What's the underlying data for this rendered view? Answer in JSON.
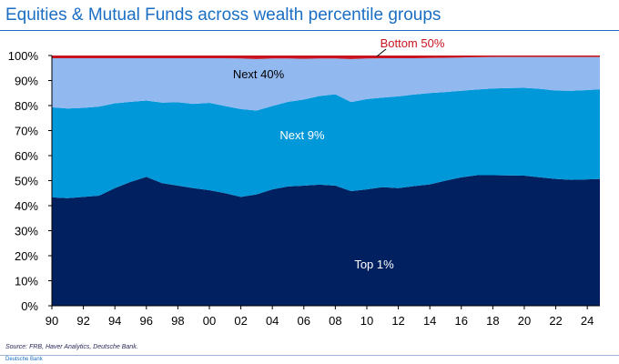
{
  "header": {
    "title": "Equities & Mutual Funds across wealth percentile groups"
  },
  "footer": {
    "source": "Source: FRB, Haver Analytics, Deutsche Bank.",
    "brand": "Deutsche Bank"
  },
  "colors": {
    "top1": "#012060",
    "next9": "#0098d8",
    "next40": "#92b8f0",
    "bottom50": "#c8141e",
    "title": "#1a6fc4"
  },
  "chart_data": {
    "type": "area",
    "stacked": true,
    "percent": true,
    "title": "Equities & Mutual Funds across wealth percentile groups",
    "xlim": [
      1990,
      2024.8
    ],
    "ylim": [
      0,
      100
    ],
    "x_ticks": [
      "90",
      "92",
      "94",
      "96",
      "98",
      "00",
      "02",
      "04",
      "06",
      "08",
      "10",
      "12",
      "14",
      "16",
      "18",
      "20",
      "22",
      "24"
    ],
    "y_ticks": [
      "0%",
      "10%",
      "20%",
      "30%",
      "40%",
      "50%",
      "60%",
      "70%",
      "80%",
      "90%",
      "100%"
    ],
    "x": [
      1990,
      1991,
      1992,
      1993,
      1994,
      1995,
      1996,
      1997,
      1998,
      1999,
      2000,
      2001,
      2002,
      2003,
      2004,
      2005,
      2006,
      2007,
      2008,
      2009,
      2010,
      2011,
      2012,
      2013,
      2014,
      2015,
      2016,
      2017,
      2018,
      2019,
      2020,
      2021,
      2022,
      2023,
      2024,
      2024.8
    ],
    "series": [
      {
        "name": "Top 1%",
        "values": [
          43.3,
          43.0,
          43.5,
          44.0,
          47.0,
          49.5,
          51.5,
          49.0,
          48.0,
          47.0,
          46.2,
          45.0,
          43.5,
          44.5,
          46.5,
          47.7,
          48.0,
          48.4,
          48.0,
          45.8,
          46.5,
          47.4,
          47.0,
          47.8,
          48.5,
          50.0,
          51.3,
          52.2,
          52.2,
          52.1,
          52.0,
          51.3,
          50.7,
          50.3,
          50.5,
          50.7
        ]
      },
      {
        "name": "Next 9%",
        "values": [
          36.0,
          35.8,
          35.6,
          35.6,
          33.9,
          32.0,
          30.5,
          32.2,
          33.3,
          33.7,
          34.9,
          34.8,
          35.1,
          33.5,
          33.3,
          33.8,
          34.4,
          35.4,
          36.5,
          35.6,
          36.1,
          35.8,
          36.7,
          36.6,
          36.5,
          35.4,
          34.6,
          34.2,
          34.6,
          34.9,
          35.1,
          35.4,
          35.3,
          35.6,
          35.7,
          35.8
        ]
      },
      {
        "name": "Next 40%",
        "values": [
          19.6,
          20.1,
          19.8,
          19.3,
          18.0,
          17.4,
          16.9,
          17.7,
          17.6,
          18.2,
          17.8,
          19.1,
          20.2,
          20.6,
          19.0,
          17.3,
          16.3,
          15.0,
          14.3,
          17.2,
          16.2,
          15.7,
          15.2,
          14.5,
          14.0,
          13.7,
          13.3,
          12.9,
          12.6,
          12.4,
          12.3,
          12.7,
          13.4,
          13.5,
          13.2,
          12.9
        ]
      },
      {
        "name": "Bottom 50%",
        "values": [
          1.1,
          1.1,
          1.1,
          1.1,
          1.1,
          1.1,
          1.1,
          1.1,
          1.1,
          1.1,
          1.1,
          1.1,
          1.2,
          1.4,
          1.2,
          1.2,
          1.3,
          1.2,
          1.2,
          1.4,
          1.2,
          1.1,
          1.1,
          1.1,
          1.0,
          0.9,
          0.8,
          0.7,
          0.6,
          0.6,
          0.6,
          0.6,
          0.6,
          0.6,
          0.6,
          0.6
        ]
      }
    ]
  }
}
